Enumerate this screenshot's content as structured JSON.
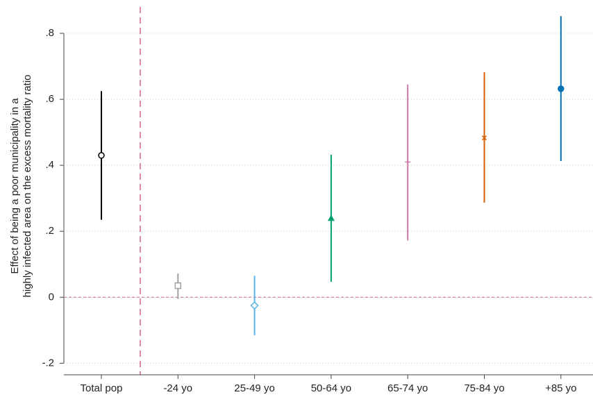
{
  "chart_data": {
    "type": "errorbar",
    "ylabel": [
      "Effect of being a poor municipality in a",
      "highly infected area on the excess mortality ratio"
    ],
    "categories": [
      "Total pop",
      "-24 yo",
      "25-49 yo",
      "50-64 yo",
      "65-74 yo",
      "75-84 yo",
      "+85 yo"
    ],
    "values": [
      0.43,
      0.035,
      -0.025,
      0.24,
      0.41,
      0.483,
      0.632
    ],
    "lower": [
      0.235,
      -0.005,
      -0.115,
      0.047,
      0.172,
      0.287,
      0.413
    ],
    "upper": [
      0.625,
      0.072,
      0.065,
      0.432,
      0.645,
      0.682,
      0.852
    ],
    "colors": [
      "#000000",
      "#a0a0a0",
      "#56b4e9",
      "#009e73",
      "#cc79a7",
      "#d55e00",
      "#0072b2"
    ],
    "markers": [
      "circle-open",
      "square-open",
      "diamond-open",
      "triangle",
      "plus",
      "x",
      "circle"
    ],
    "ylim": [
      -0.235,
      0.88
    ],
    "yticks": [
      {
        "value": -0.2,
        "label": "-.2"
      },
      0,
      {
        "value": 0.2,
        "label": ".2"
      },
      {
        "value": 0.4,
        "label": ".4"
      },
      {
        "value": 0.6,
        "label": ".6"
      },
      {
        "value": 0.8,
        "label": ".8"
      }
    ],
    "reference_y": 0,
    "grid": true
  }
}
